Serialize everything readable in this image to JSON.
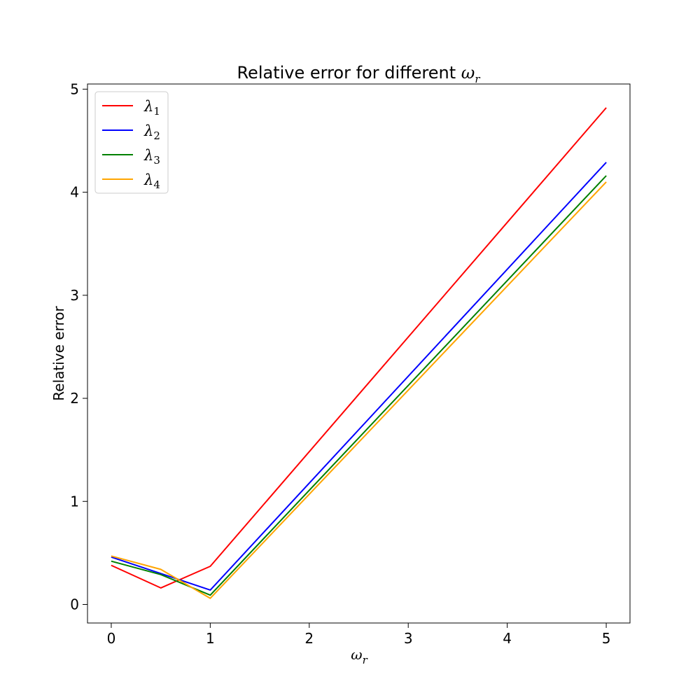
{
  "chart_data": {
    "type": "line",
    "title": {
      "text": "Relative error for different ",
      "symbol": "ω",
      "subscript": "r"
    },
    "xlabel": {
      "symbol": "ω",
      "subscript": "r"
    },
    "ylabel": "Relative error",
    "x": [
      0,
      0.5,
      1,
      5
    ],
    "xlim": [
      -0.24,
      5.24
    ],
    "ylim": [
      -0.18,
      5.05
    ],
    "xticks": [
      0,
      1,
      2,
      3,
      4,
      5
    ],
    "yticks": [
      0,
      1,
      2,
      3,
      4,
      5
    ],
    "grid": false,
    "legend_position": "upper-left",
    "series": [
      {
        "name": "λ1",
        "symbol": "λ",
        "subscript": "1",
        "color": "#ff0000",
        "values": [
          0.38,
          0.16,
          0.37,
          4.82
        ]
      },
      {
        "name": "λ2",
        "symbol": "λ",
        "subscript": "2",
        "color": "#0000ff",
        "values": [
          0.46,
          0.3,
          0.14,
          4.29
        ]
      },
      {
        "name": "λ3",
        "symbol": "λ",
        "subscript": "3",
        "color": "#008000",
        "values": [
          0.42,
          0.29,
          0.09,
          4.16
        ]
      },
      {
        "name": "λ4",
        "symbol": "λ",
        "subscript": "4",
        "color": "#ffa500",
        "values": [
          0.47,
          0.34,
          0.06,
          4.1
        ]
      }
    ]
  }
}
